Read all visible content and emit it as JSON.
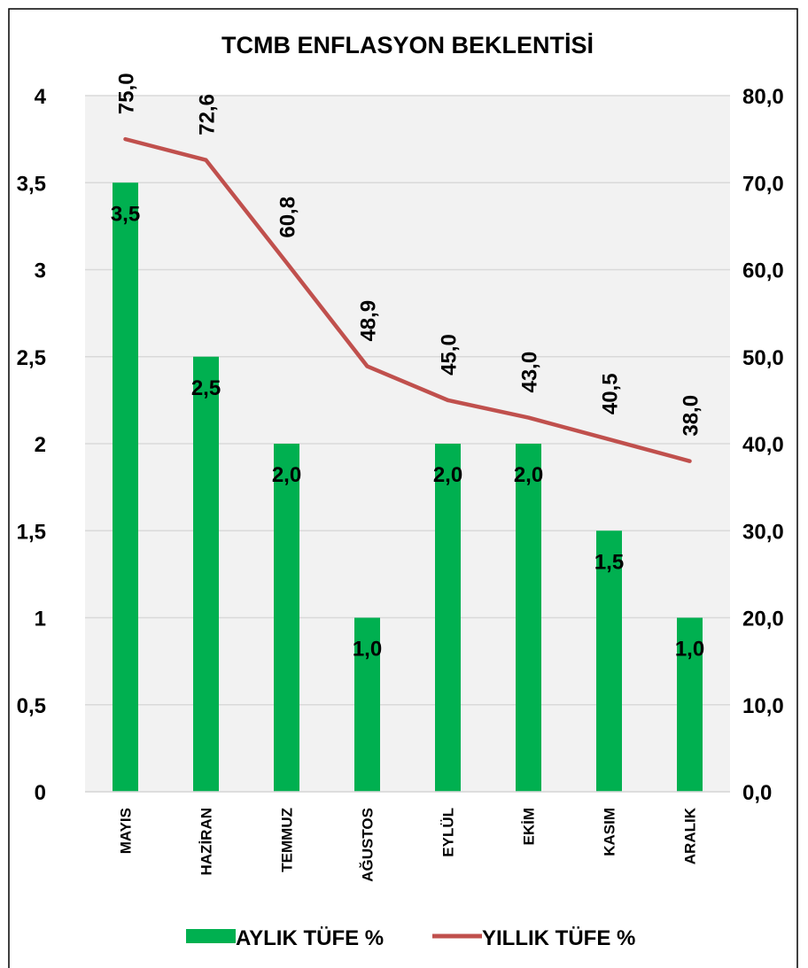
{
  "chart_data": {
    "type": "bar",
    "title": "TCMB ENFLASYON BEKLENTİSİ",
    "categories": [
      "MAYIS",
      "HAZİRAN",
      "TEMMUZ",
      "AĞUSTOS",
      "EYLÜL",
      "EKİM",
      "KASIM",
      "ARALIK"
    ],
    "series": [
      {
        "name": "AYLIK TÜFE %",
        "type": "bar",
        "axis": "left",
        "color": "#00b050",
        "values": [
          3.5,
          2.5,
          2.0,
          1.0,
          2.0,
          2.0,
          1.5,
          1.0
        ],
        "labels": [
          "3,5",
          "2,5",
          "2,0",
          "1,0",
          "2,0",
          "2,0",
          "1,5",
          "1,0"
        ]
      },
      {
        "name": "YILLIK TÜFE %",
        "type": "line",
        "axis": "right",
        "color": "#c0504d",
        "values": [
          75.0,
          72.6,
          60.8,
          48.9,
          45.0,
          43.0,
          40.5,
          38.0
        ],
        "labels": [
          "75,0",
          "72,6",
          "60,8",
          "48,9",
          "45,0",
          "43,0",
          "40,5",
          "38,0"
        ]
      }
    ],
    "y_left": {
      "range": [
        0,
        4
      ],
      "ticks": [
        0,
        0.5,
        1,
        1.5,
        2,
        2.5,
        3,
        3.5,
        4
      ],
      "tick_labels": [
        "0",
        "0,5",
        "1",
        "1,5",
        "2",
        "2,5",
        "3",
        "3,5",
        "4"
      ]
    },
    "y_right": {
      "range": [
        0,
        80
      ],
      "ticks": [
        0,
        10,
        20,
        30,
        40,
        50,
        60,
        70,
        80
      ],
      "tick_labels": [
        "0,0",
        "10,0",
        "20,0",
        "30,0",
        "40,0",
        "50,0",
        "60,0",
        "70,0",
        "80,0"
      ]
    },
    "grid": true,
    "legend": "bottom",
    "plot_background": "#f2f2f2"
  }
}
